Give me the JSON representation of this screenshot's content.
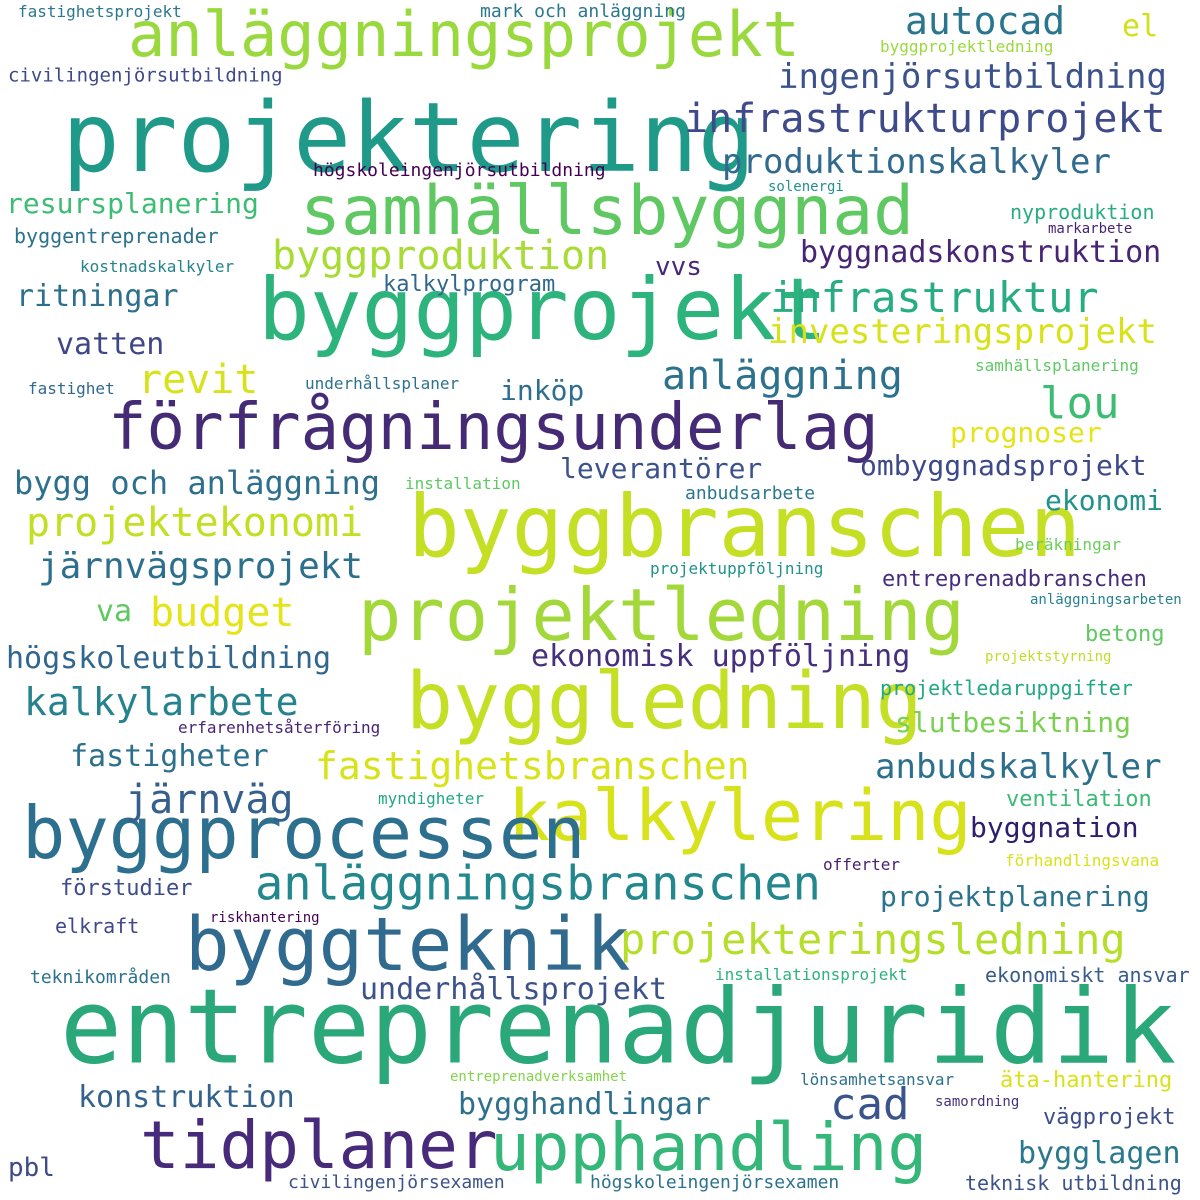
{
  "words": [
    {
      "text": "entreprenadjuridik",
      "color": "#2aa87a"
    },
    {
      "text": "projektering",
      "color": "#1f9a88"
    },
    {
      "text": "byggprojekt",
      "color": "#2cb47c"
    },
    {
      "text": "byggbranschen",
      "color": "#c4df24"
    },
    {
      "text": "förfrågningsunderlag",
      "color": "#452b75"
    },
    {
      "text": "byggledning",
      "color": "#c4df24"
    },
    {
      "text": "kalkylering",
      "color": "#d7e21a"
    },
    {
      "text": "byggprocessen",
      "color": "#2d6f8e"
    },
    {
      "text": "byggteknik",
      "color": "#306a8e"
    },
    {
      "text": "projektledning",
      "color": "#a2d83a"
    },
    {
      "text": "anläggningsprojekt",
      "color": "#9ad93e"
    },
    {
      "text": "samhällsbyggnad",
      "color": "#5fc862"
    },
    {
      "text": "upphandling",
      "color": "#35b779"
    },
    {
      "text": "tidplaner",
      "color": "#472a7a"
    },
    {
      "text": "anläggningsbranschen",
      "color": "#23888e"
    },
    {
      "text": "projekteringsledning",
      "color": "#b5de2b"
    },
    {
      "text": "infrastrukturprojekt",
      "color": "#3e4a89"
    },
    {
      "text": "byggproduktion",
      "color": "#a8db34"
    },
    {
      "text": "infrastruktur",
      "color": "#27ad81"
    },
    {
      "text": "projektekonomi",
      "color": "#c2df23"
    },
    {
      "text": "autocad",
      "color": "#2a768e"
    },
    {
      "text": "fastighetsbranschen",
      "color": "#d8e219"
    },
    {
      "text": "anläggning",
      "color": "#2c728e"
    },
    {
      "text": "produktionskalkyler",
      "color": "#306a8e"
    },
    {
      "text": "kalkylarbete",
      "color": "#26828e"
    },
    {
      "text": "järnvägsprojekt",
      "color": "#2d708e"
    },
    {
      "text": "ingenjörsutbildning",
      "color": "#3b528b"
    },
    {
      "text": "investeringsprojekt",
      "color": "#d8e219"
    },
    {
      "text": "järnväg",
      "color": "#355f8d"
    },
    {
      "text": "budget",
      "color": "#e5e419"
    },
    {
      "text": "anbudskalkyler",
      "color": "#2d708e"
    },
    {
      "text": "lou",
      "color": "#3dbc74"
    },
    {
      "text": "revit",
      "color": "#d8e219"
    },
    {
      "text": "cad",
      "color": "#3a548c"
    },
    {
      "text": "bygg och anläggning",
      "color": "#2d708e"
    },
    {
      "text": "byggnadskonstruktion",
      "color": "#482475"
    },
    {
      "text": "ombyggnadsprojekt",
      "color": "#3e4989"
    },
    {
      "text": "ekonomisk uppföljning",
      "color": "#46307e"
    },
    {
      "text": "högskoleutbildning",
      "color": "#31678e"
    },
    {
      "text": "underhållsprojekt",
      "color": "#3b528b"
    },
    {
      "text": "projektplanering",
      "color": "#2c738e"
    },
    {
      "text": "bygghandlingar",
      "color": "#2d708e"
    },
    {
      "text": "konstruktion",
      "color": "#33638d"
    },
    {
      "text": "resursplanering",
      "color": "#3dbc74"
    },
    {
      "text": "leverantörer",
      "color": "#3b528b"
    },
    {
      "text": "fastigheter",
      "color": "#2d708e"
    },
    {
      "text": "slutbesiktning",
      "color": "#7ad151"
    },
    {
      "text": "bygglagen",
      "color": "#2a788e"
    },
    {
      "text": "ekonomi",
      "color": "#21918c"
    },
    {
      "text": "prognoser",
      "color": "#e5e419"
    },
    {
      "text": "byggnation",
      "color": "#2e1e6e"
    },
    {
      "text": "vatten",
      "color": "#3f4788"
    },
    {
      "text": "ritningar",
      "color": "#2d708e"
    },
    {
      "text": "inköp",
      "color": "#2e6e8e"
    },
    {
      "text": "entreprenadbranschen",
      "color": "#472d7b"
    },
    {
      "text": "vvs",
      "color": "#482878"
    },
    {
      "text": "el",
      "color": "#d0e11c"
    },
    {
      "text": "va",
      "color": "#5ec962"
    },
    {
      "text": "ventilation",
      "color": "#3aba76"
    },
    {
      "text": "äta-hantering",
      "color": "#d8e219"
    },
    {
      "text": "vägprojekt",
      "color": "#3d4d8a"
    },
    {
      "text": "kalkylprogram",
      "color": "#30678d"
    },
    {
      "text": "betong",
      "color": "#5ec962"
    },
    {
      "text": "ekonomiskt ansvar",
      "color": "#375b8d"
    },
    {
      "text": "förstudier",
      "color": "#3e4c8a"
    },
    {
      "text": "pbl",
      "color": "#3e4a89"
    },
    {
      "text": "civilingenjörsutbildning",
      "color": "#3e4989"
    },
    {
      "text": "projektledaruppgifter",
      "color": "#22a884"
    },
    {
      "text": "högskoleingenjörsutbildning",
      "color": "#440154"
    },
    {
      "text": "teknisk utbildning",
      "color": "#3b528b"
    },
    {
      "text": "byggentreprenader",
      "color": "#2c728e"
    },
    {
      "text": "nyproduktion",
      "color": "#27ad81"
    },
    {
      "text": "civilingenjörsexamen",
      "color": "#3b528b"
    },
    {
      "text": "högskoleingenjörsexamen",
      "color": "#2c728e"
    },
    {
      "text": "anbudsarbete",
      "color": "#2a788e"
    },
    {
      "text": "mark och anläggning",
      "color": "#2a788e"
    },
    {
      "text": "elkraft",
      "color": "#3f4889"
    },
    {
      "text": "teknikområden",
      "color": "#2c728e"
    },
    {
      "text": "kostnadskalkyler",
      "color": "#26828e"
    },
    {
      "text": "lönsamhetsansvar",
      "color": "#2c728e"
    },
    {
      "text": "installationsprojekt",
      "color": "#2db27d"
    },
    {
      "text": "underhållsplaner",
      "color": "#2c728e"
    },
    {
      "text": "byggprojektledning",
      "color": "#9bd93c"
    },
    {
      "text": "beräkningar",
      "color": "#6ccd5a"
    },
    {
      "text": "fastighetsprojekt",
      "color": "#2a788e"
    },
    {
      "text": "projektuppföljning",
      "color": "#21918c"
    },
    {
      "text": "erfarenhetsåterföring",
      "color": "#482475"
    },
    {
      "text": "installation",
      "color": "#5ec962"
    },
    {
      "text": "samhällsplanering",
      "color": "#5ec962"
    },
    {
      "text": "fastighet",
      "color": "#31688e"
    },
    {
      "text": "förhandlingsvana",
      "color": "#d8e219"
    },
    {
      "text": "myndigheter",
      "color": "#22a884"
    },
    {
      "text": "offerter",
      "color": "#482173"
    },
    {
      "text": "riskhantering",
      "color": "#440154"
    },
    {
      "text": "markarbete",
      "color": "#482475"
    },
    {
      "text": "solenergi",
      "color": "#21918c"
    },
    {
      "text": "anläggningsarbeten",
      "color": "#26828e"
    },
    {
      "text": "projektstyrning",
      "color": "#bddf26"
    },
    {
      "text": "entreprenadverksamhet",
      "color": "#84d44b"
    },
    {
      "text": "samordning",
      "color": "#46327e"
    }
  ]
}
